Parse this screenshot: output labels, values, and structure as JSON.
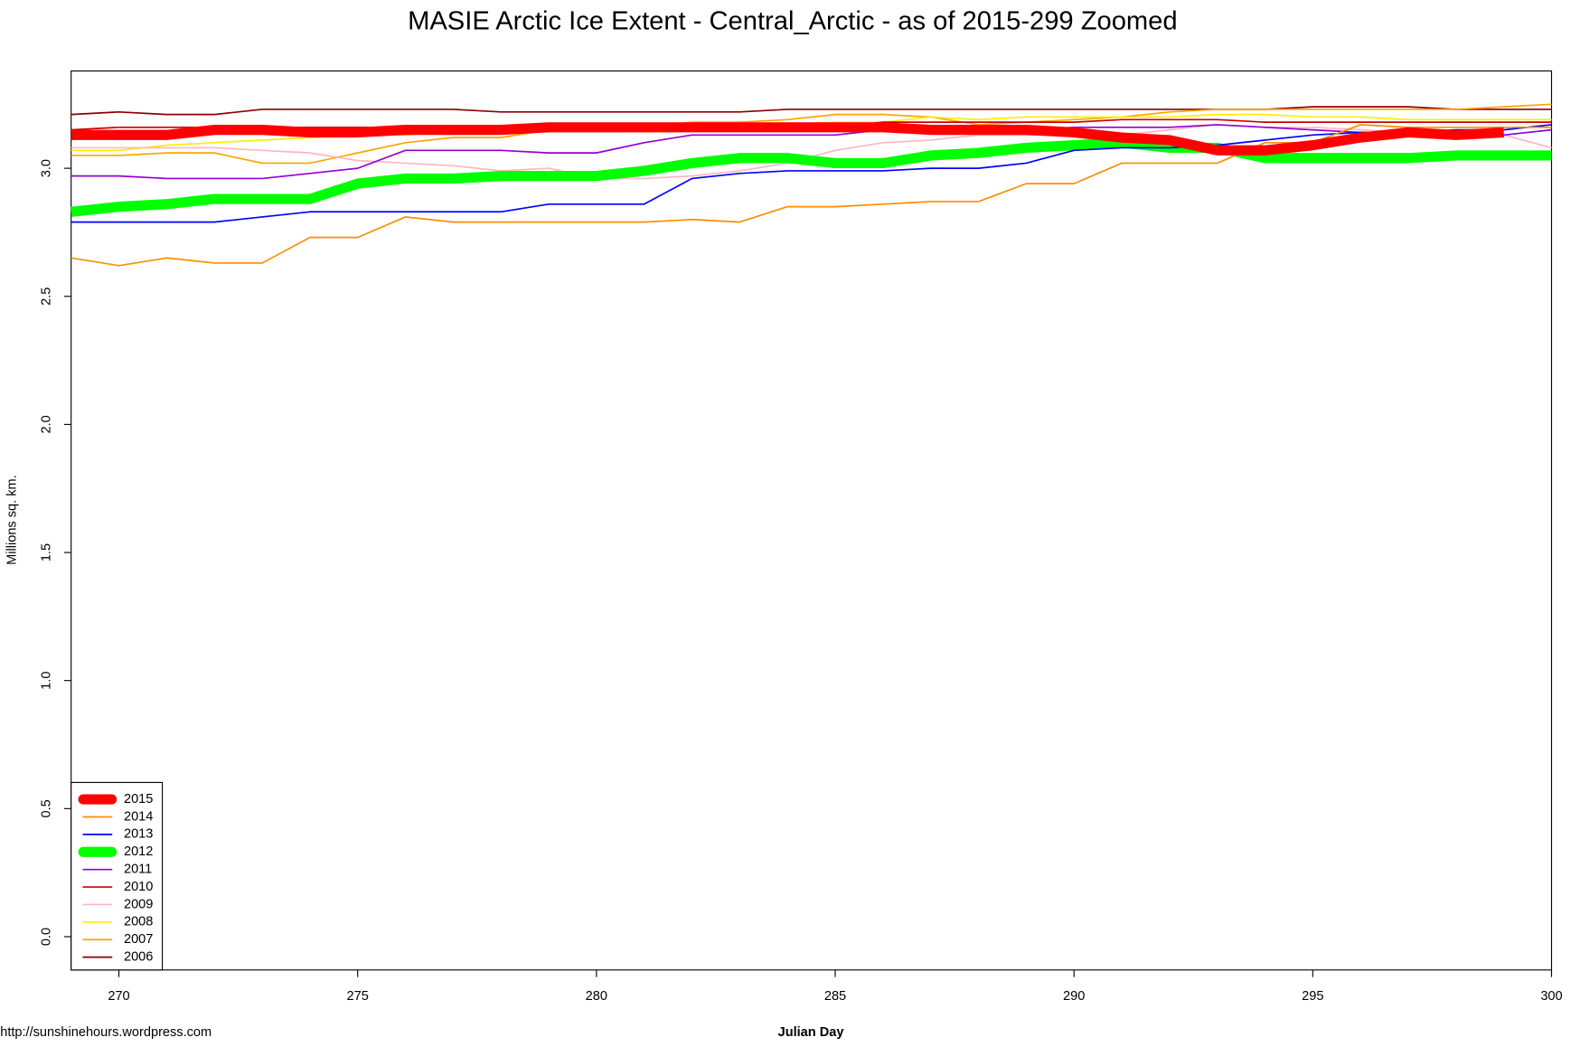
{
  "chart_data": {
    "type": "line",
    "title": "MASIE Arctic Ice Extent - Central_Arctic - as of 2015-299 Zoomed",
    "x_label": "Julian Day",
    "y_label": "Millions sq. km.",
    "source": "http://sunshinehours.wordpress.com",
    "x": [
      269,
      270,
      271,
      272,
      273,
      274,
      275,
      276,
      277,
      278,
      279,
      280,
      281,
      282,
      283,
      284,
      285,
      286,
      287,
      288,
      289,
      290,
      291,
      292,
      293,
      294,
      295,
      296,
      297,
      298,
      299,
      300
    ],
    "xlim": [
      269,
      300
    ],
    "ylim": [
      -0.13,
      3.38
    ],
    "xticks": [
      270,
      275,
      280,
      285,
      290,
      295,
      300
    ],
    "yticks": [
      {
        "value": 0,
        "label": "0.0"
      },
      {
        "value": 0.5,
        "label": "0.5"
      },
      {
        "value": 1,
        "label": "1.0"
      },
      {
        "value": 1.5,
        "label": "1.5"
      },
      {
        "value": 2,
        "label": "2.0"
      },
      {
        "value": 2.5,
        "label": "2.5"
      },
      {
        "value": 3,
        "label": "3.0"
      }
    ],
    "legend": "bottom-left",
    "series": [
      {
        "name": "2015",
        "color": "#ff0000",
        "width": 10,
        "values": [
          3.13,
          3.13,
          3.13,
          3.15,
          3.15,
          3.14,
          3.14,
          3.15,
          3.15,
          3.15,
          3.16,
          3.16,
          3.16,
          3.16,
          3.16,
          3.16,
          3.16,
          3.16,
          3.15,
          3.15,
          3.15,
          3.14,
          3.12,
          3.11,
          3.07,
          3.07,
          3.09,
          3.12,
          3.14,
          3.13,
          3.14,
          null
        ]
      },
      {
        "name": "2014",
        "color": "#ff8c00",
        "width": 1.5,
        "values": [
          2.65,
          2.62,
          2.65,
          2.63,
          2.63,
          2.73,
          2.73,
          2.81,
          2.79,
          2.79,
          2.79,
          2.79,
          2.79,
          2.8,
          2.79,
          2.85,
          2.85,
          2.86,
          2.87,
          2.87,
          2.94,
          2.94,
          3.02,
          3.02,
          3.02,
          3.1,
          3.1,
          3.17,
          3.16,
          3.16,
          3.16,
          3.16
        ]
      },
      {
        "name": "2013",
        "color": "#0000ff",
        "width": 1.5,
        "values": [
          2.79,
          2.79,
          2.79,
          2.79,
          2.81,
          2.83,
          2.83,
          2.83,
          2.83,
          2.83,
          2.86,
          2.86,
          2.86,
          2.96,
          2.98,
          2.99,
          2.99,
          2.99,
          3.0,
          3.0,
          3.02,
          3.07,
          3.08,
          3.08,
          3.09,
          3.11,
          3.13,
          3.14,
          3.14,
          3.15,
          3.15,
          3.17
        ]
      },
      {
        "name": "2012",
        "color": "#00ff00",
        "width": 10,
        "values": [
          2.83,
          2.85,
          2.86,
          2.88,
          2.88,
          2.88,
          2.94,
          2.96,
          2.96,
          2.97,
          2.97,
          2.97,
          2.99,
          3.02,
          3.04,
          3.04,
          3.02,
          3.02,
          3.05,
          3.06,
          3.08,
          3.09,
          3.1,
          3.08,
          3.08,
          3.04,
          3.04,
          3.04,
          3.04,
          3.05,
          3.05,
          3.05
        ]
      },
      {
        "name": "2011",
        "color": "#9400d3",
        "width": 1.5,
        "values": [
          2.97,
          2.97,
          2.96,
          2.96,
          2.96,
          2.98,
          3.0,
          3.07,
          3.07,
          3.07,
          3.06,
          3.06,
          3.1,
          3.13,
          3.13,
          3.13,
          3.13,
          3.15,
          3.15,
          3.15,
          3.15,
          3.16,
          3.16,
          3.16,
          3.17,
          3.16,
          3.15,
          3.14,
          3.14,
          3.13,
          3.13,
          3.15
        ]
      },
      {
        "name": "2010",
        "color": "#cc0000",
        "width": 1.5,
        "values": [
          3.15,
          3.16,
          3.16,
          3.16,
          3.16,
          3.16,
          3.16,
          3.16,
          3.16,
          3.16,
          3.16,
          3.16,
          3.16,
          3.16,
          3.16,
          3.16,
          3.16,
          3.18,
          3.18,
          3.18,
          3.18,
          3.18,
          3.19,
          3.19,
          3.19,
          3.18,
          3.18,
          3.18,
          3.18,
          3.18,
          3.18,
          3.18
        ]
      },
      {
        "name": "2009",
        "color": "#ffb6c1",
        "width": 1.5,
        "values": [
          3.08,
          3.08,
          3.08,
          3.08,
          3.07,
          3.06,
          3.03,
          3.02,
          3.01,
          2.99,
          3.0,
          2.96,
          2.96,
          2.97,
          2.99,
          3.02,
          3.07,
          3.1,
          3.11,
          3.13,
          3.13,
          3.13,
          3.13,
          3.15,
          3.17,
          3.16,
          3.16,
          3.15,
          3.14,
          3.14,
          3.13,
          3.08
        ]
      },
      {
        "name": "2008",
        "color": "#ffee00",
        "width": 1.5,
        "values": [
          3.07,
          3.07,
          3.09,
          3.1,
          3.11,
          3.12,
          3.13,
          3.13,
          3.14,
          3.14,
          3.15,
          3.15,
          3.15,
          3.16,
          3.17,
          3.17,
          3.18,
          3.18,
          3.2,
          3.19,
          3.2,
          3.2,
          3.2,
          3.2,
          3.21,
          3.21,
          3.2,
          3.2,
          3.19,
          3.19,
          3.19,
          3.19
        ]
      },
      {
        "name": "2007",
        "color": "#ffa500",
        "width": 1.5,
        "values": [
          3.05,
          3.05,
          3.06,
          3.06,
          3.02,
          3.02,
          3.06,
          3.1,
          3.12,
          3.12,
          3.15,
          3.15,
          3.16,
          3.18,
          3.18,
          3.19,
          3.21,
          3.21,
          3.2,
          3.17,
          3.18,
          3.19,
          3.2,
          3.22,
          3.23,
          3.23,
          3.23,
          3.23,
          3.23,
          3.23,
          3.24,
          3.25
        ]
      },
      {
        "name": "2006",
        "color": "#8b0000",
        "width": 1.5,
        "values": [
          3.21,
          3.22,
          3.21,
          3.21,
          3.23,
          3.23,
          3.23,
          3.23,
          3.23,
          3.22,
          3.22,
          3.22,
          3.22,
          3.22,
          3.22,
          3.23,
          3.23,
          3.23,
          3.23,
          3.23,
          3.23,
          3.23,
          3.23,
          3.23,
          3.23,
          3.23,
          3.24,
          3.24,
          3.24,
          3.23,
          3.23,
          3.23
        ]
      }
    ]
  }
}
